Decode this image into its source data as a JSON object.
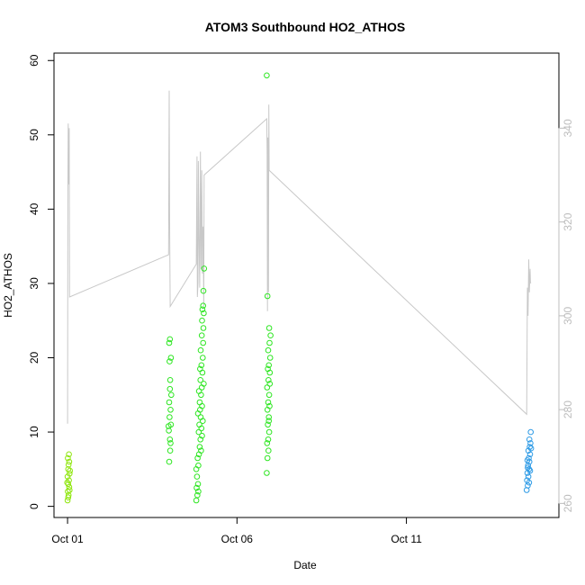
{
  "chart_data": {
    "type": "scatter",
    "title": "ATOM3 Southbound HO2_ATHOS",
    "xlabel": "Date",
    "ylabel": "HO2_ATHOS",
    "x_ticks": [
      "Oct 01",
      "Oct 06",
      "Oct 11"
    ],
    "x_tick_days": [
      1,
      6,
      11
    ],
    "xlim": [
      0.6,
      15.5
    ],
    "ylim": [
      -1.5,
      61
    ],
    "y_ticks": [
      0,
      10,
      20,
      30,
      40,
      50,
      60
    ],
    "y2lim": [
      257,
      356
    ],
    "y2_ticks": [
      260,
      280,
      300,
      320,
      340
    ],
    "grid": false,
    "line_color": "#c8c8c8",
    "series": [
      {
        "color": "#8ee60c",
        "points": [
          [
            1.0,
            0.8
          ],
          [
            1.03,
            1.5
          ],
          [
            1.01,
            2.0
          ],
          [
            1.05,
            2.6
          ],
          [
            1.02,
            3.0
          ],
          [
            1.04,
            3.5
          ],
          [
            1.0,
            4.0
          ],
          [
            1.06,
            4.4
          ],
          [
            1.02,
            5.0
          ],
          [
            1.03,
            5.6
          ],
          [
            1.05,
            6.0
          ],
          [
            1.01,
            6.5
          ],
          [
            1.04,
            7.0
          ],
          [
            1.07,
            4.8
          ],
          [
            0.99,
            3.2
          ],
          [
            1.06,
            2.2
          ],
          [
            1.02,
            1.2
          ]
        ]
      },
      {
        "color": "#2ee622",
        "points": [
          [
            4.0,
            6.0
          ],
          [
            4.03,
            7.5
          ],
          [
            4.02,
            9.0
          ],
          [
            3.99,
            10.2
          ],
          [
            4.05,
            11.0
          ],
          [
            4.01,
            12.0
          ],
          [
            4.04,
            13.0
          ],
          [
            4.0,
            14.0
          ],
          [
            4.06,
            15.0
          ],
          [
            4.02,
            15.8
          ],
          [
            4.03,
            17.0
          ],
          [
            4.01,
            19.5
          ],
          [
            4.05,
            20.0
          ],
          [
            4.0,
            22.0
          ],
          [
            4.02,
            22.5
          ],
          [
            3.98,
            10.8
          ],
          [
            4.04,
            8.5
          ],
          [
            4.8,
            0.8
          ],
          [
            4.83,
            1.5
          ],
          [
            4.81,
            2.5
          ],
          [
            4.85,
            3.0
          ],
          [
            4.82,
            4.0
          ],
          [
            4.8,
            5.0
          ],
          [
            4.86,
            5.5
          ],
          [
            4.84,
            6.5
          ],
          [
            4.88,
            7.0
          ],
          [
            4.9,
            8.0
          ],
          [
            4.92,
            9.0
          ],
          [
            4.87,
            10.0
          ],
          [
            4.95,
            10.5
          ],
          [
            4.89,
            11.0
          ],
          [
            4.93,
            12.0
          ],
          [
            4.91,
            13.0
          ],
          [
            4.97,
            13.5
          ],
          [
            4.9,
            14.0
          ],
          [
            4.94,
            15.0
          ],
          [
            4.96,
            16.0
          ],
          [
            4.92,
            17.0
          ],
          [
            4.98,
            18.0
          ],
          [
            4.95,
            19.0
          ],
          [
            4.99,
            20.0
          ],
          [
            4.93,
            21.0
          ],
          [
            5.0,
            22.0
          ],
          [
            4.96,
            23.0
          ],
          [
            5.01,
            24.0
          ],
          [
            4.97,
            25.0
          ],
          [
            5.02,
            26.0
          ],
          [
            4.98,
            26.5
          ],
          [
            5.0,
            27.0
          ],
          [
            5.01,
            29.0
          ],
          [
            5.03,
            32.0
          ],
          [
            4.85,
            12.5
          ],
          [
            4.88,
            15.5
          ],
          [
            4.91,
            18.5
          ],
          [
            4.94,
            7.5
          ],
          [
            4.97,
            9.5
          ],
          [
            4.86,
            2.0
          ],
          [
            4.99,
            11.5
          ],
          [
            5.02,
            16.5
          ],
          [
            6.88,
            4.5
          ],
          [
            6.9,
            6.5
          ],
          [
            6.93,
            7.5
          ],
          [
            6.89,
            8.5
          ],
          [
            6.92,
            9.0
          ],
          [
            6.95,
            10.0
          ],
          [
            6.91,
            11.0
          ],
          [
            6.94,
            12.0
          ],
          [
            6.9,
            13.0
          ],
          [
            6.96,
            13.5
          ],
          [
            6.92,
            14.0
          ],
          [
            6.95,
            15.0
          ],
          [
            6.89,
            16.0
          ],
          [
            6.93,
            17.0
          ],
          [
            6.97,
            18.0
          ],
          [
            6.91,
            18.5
          ],
          [
            6.94,
            19.0
          ],
          [
            6.98,
            20.0
          ],
          [
            6.92,
            21.0
          ],
          [
            6.96,
            22.0
          ],
          [
            6.99,
            23.0
          ],
          [
            6.95,
            24.0
          ],
          [
            6.9,
            28.3
          ],
          [
            6.88,
            58.0
          ],
          [
            6.94,
            11.5
          ],
          [
            6.97,
            16.5
          ]
        ]
      },
      {
        "color": "#2e9be6",
        "points": [
          [
            14.55,
            2.2
          ],
          [
            14.58,
            2.8
          ],
          [
            14.56,
            3.5
          ],
          [
            14.6,
            4.0
          ],
          [
            14.57,
            4.5
          ],
          [
            14.62,
            5.0
          ],
          [
            14.59,
            5.5
          ],
          [
            14.63,
            6.0
          ],
          [
            14.61,
            6.5
          ],
          [
            14.65,
            7.0
          ],
          [
            14.6,
            7.5
          ],
          [
            14.64,
            8.0
          ],
          [
            14.66,
            8.5
          ],
          [
            14.63,
            9.0
          ],
          [
            14.67,
            10.0
          ],
          [
            14.58,
            5.2
          ],
          [
            14.62,
            3.2
          ],
          [
            14.65,
            4.8
          ],
          [
            14.57,
            6.2
          ],
          [
            14.68,
            7.8
          ]
        ]
      }
    ],
    "secondary_line": {
      "points": [
        [
          1.0,
          277
        ],
        [
          1.01,
          326
        ],
        [
          1.02,
          341
        ],
        [
          1.03,
          329
        ],
        [
          1.04,
          328
        ],
        [
          1.05,
          340
        ],
        [
          1.06,
          304
        ],
        [
          3.98,
          313
        ],
        [
          4.0,
          348
        ],
        [
          4.01,
          322
        ],
        [
          4.03,
          302
        ],
        [
          4.8,
          311
        ],
        [
          4.82,
          334
        ],
        [
          4.83,
          304
        ],
        [
          4.85,
          307
        ],
        [
          4.86,
          333
        ],
        [
          4.88,
          317
        ],
        [
          4.9,
          306
        ],
        [
          4.92,
          335
        ],
        [
          4.94,
          310
        ],
        [
          4.96,
          331
        ],
        [
          4.98,
          309
        ],
        [
          5.0,
          319
        ],
        [
          5.02,
          302
        ],
        [
          5.03,
          330
        ],
        [
          6.88,
          342
        ],
        [
          6.89,
          335
        ],
        [
          6.9,
          301
        ],
        [
          6.91,
          338
        ],
        [
          6.92,
          319
        ],
        [
          6.93,
          305
        ],
        [
          6.94,
          345
        ],
        [
          6.95,
          331
        ],
        [
          14.55,
          279
        ],
        [
          14.57,
          306
        ],
        [
          14.59,
          300
        ],
        [
          14.61,
          312
        ],
        [
          14.63,
          305
        ],
        [
          14.65,
          310
        ],
        [
          14.66,
          307
        ],
        [
          14.68,
          307
        ]
      ]
    }
  }
}
